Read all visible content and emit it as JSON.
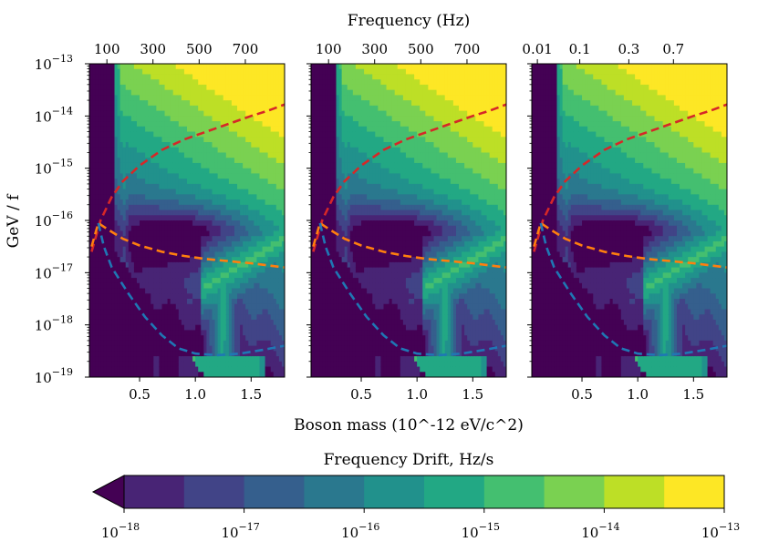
{
  "chart_data": {
    "type": "contour",
    "layout": "1x3 panels sharing axes",
    "title_top": "Frequency (Hz)",
    "xlabel": "Boson mass (10^-12 eV/c^2)",
    "ylabel": "GeV / f",
    "xlim": [
      0.05,
      1.8
    ],
    "x_ticks": [
      0.5,
      1.0,
      1.5
    ],
    "x_tick_labels": [
      "0.5",
      "1.0",
      "1.5"
    ],
    "ylim_log10": [
      -19,
      -13
    ],
    "y_ticks_log10": [
      -19,
      -18,
      -17,
      -16,
      -15,
      -14,
      -13
    ],
    "y_tick_base": "10",
    "y_tick_exponents": [
      "−19",
      "−18",
      "−17",
      "−16",
      "−15",
      "−14",
      "−13"
    ],
    "panels": [
      {
        "name": "left",
        "top_axis_label": "Frequency (Hz)",
        "top_ticks": [
          "100",
          "300",
          "500",
          "700"
        ],
        "top_tick_mass": [
          0.207,
          0.62,
          1.034,
          1.448
        ]
      },
      {
        "name": "middle",
        "top_ticks": [
          "100",
          "300",
          "500",
          "700"
        ],
        "top_tick_mass": [
          0.207,
          0.62,
          1.034,
          1.448
        ]
      },
      {
        "name": "right",
        "top_ticks": [
          "0.01",
          "0.1",
          "0.3",
          "0.7"
        ],
        "top_tick_mass": [
          0.1,
          0.48,
          0.92,
          1.32
        ]
      }
    ],
    "series": [
      {
        "name": "red dashed",
        "color": "#d62728",
        "points": [
          [
            0.07,
            -16.6
          ],
          [
            0.15,
            -16.0
          ],
          [
            0.25,
            -15.55
          ],
          [
            0.35,
            -15.25
          ],
          [
            0.5,
            -14.95
          ],
          [
            0.7,
            -14.65
          ],
          [
            0.9,
            -14.45
          ],
          [
            1.1,
            -14.3
          ],
          [
            1.3,
            -14.15
          ],
          [
            1.5,
            -14.0
          ],
          [
            1.65,
            -13.9
          ],
          [
            1.8,
            -13.78
          ]
        ]
      },
      {
        "name": "orange dashed",
        "color": "#ff7f0e",
        "points": [
          [
            0.07,
            -16.5
          ],
          [
            0.13,
            -16.05
          ],
          [
            0.2,
            -16.15
          ],
          [
            0.35,
            -16.35
          ],
          [
            0.5,
            -16.48
          ],
          [
            0.7,
            -16.6
          ],
          [
            0.9,
            -16.68
          ],
          [
            1.1,
            -16.74
          ],
          [
            1.3,
            -16.78
          ],
          [
            1.5,
            -16.82
          ],
          [
            1.8,
            -16.9
          ]
        ]
      },
      {
        "name": "blue dashed",
        "color": "#1f77b4",
        "points": [
          [
            0.13,
            -16.05
          ],
          [
            0.18,
            -16.5
          ],
          [
            0.25,
            -16.9
          ],
          [
            0.4,
            -17.4
          ],
          [
            0.55,
            -17.85
          ],
          [
            0.7,
            -18.2
          ],
          [
            0.85,
            -18.45
          ],
          [
            1.0,
            -18.55
          ],
          [
            1.2,
            -18.58
          ],
          [
            1.4,
            -18.55
          ],
          [
            1.6,
            -18.48
          ],
          [
            1.8,
            -18.4
          ]
        ]
      }
    ],
    "colorbar": {
      "label": "Frequency Drift, Hz/s",
      "scale": "log",
      "range_log10": [
        -18,
        -13
      ],
      "levels": 10,
      "extend": "min",
      "colors": [
        "#440154",
        "#482475",
        "#414487",
        "#355f8d",
        "#2a788e",
        "#21918c",
        "#22a884",
        "#44bf70",
        "#7ad151",
        "#bddf26",
        "#fde725"
      ],
      "tick_base": "10",
      "tick_exponents": [
        "−18",
        "−17",
        "−16",
        "−15",
        "−14",
        "−13"
      ]
    }
  }
}
